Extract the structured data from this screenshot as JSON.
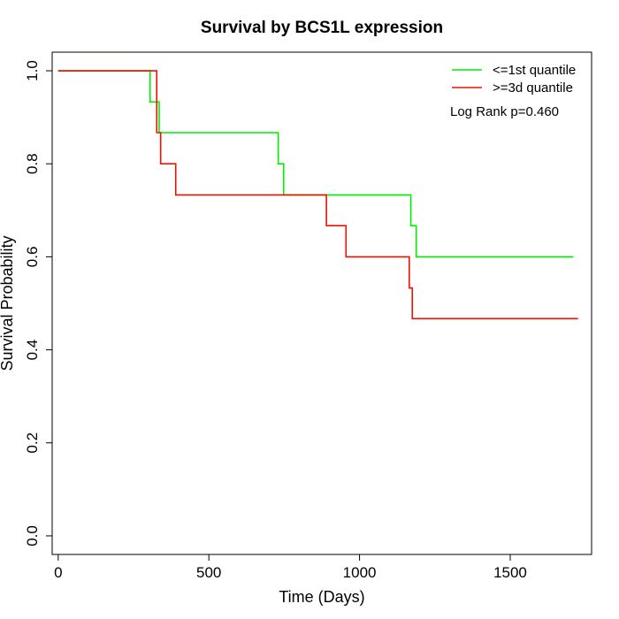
{
  "chart_data": {
    "type": "line",
    "title": "Survival by BCS1L expression",
    "xlabel": "Time (Days)",
    "ylabel": "Survival Probability",
    "xlim": [
      -20,
      1770
    ],
    "ylim": [
      -0.04,
      1.04
    ],
    "xticks": [
      0,
      500,
      1000,
      1500
    ],
    "xtick_labels": [
      "0",
      "500",
      "1000",
      "1500"
    ],
    "yticks": [
      0.0,
      0.2,
      0.4,
      0.6,
      0.8,
      1.0
    ],
    "ytick_labels": [
      "0.0",
      "0.2",
      "0.4",
      "0.6",
      "0.8",
      "1.0"
    ],
    "grid": false,
    "legend_position": "top-right",
    "annotation": "Log Rank p=0.460",
    "series": [
      {
        "name": "<=1st quantile",
        "color": "#00ee00",
        "step": true,
        "points": [
          [
            0,
            1.0
          ],
          [
            305,
            1.0
          ],
          [
            305,
            0.933
          ],
          [
            335,
            0.933
          ],
          [
            335,
            0.867
          ],
          [
            730,
            0.867
          ],
          [
            730,
            0.8
          ],
          [
            748,
            0.8
          ],
          [
            748,
            0.733
          ],
          [
            1170,
            0.733
          ],
          [
            1170,
            0.667
          ],
          [
            1188,
            0.667
          ],
          [
            1188,
            0.6
          ],
          [
            1710,
            0.6
          ]
        ]
      },
      {
        "name": ">=3d quantile",
        "color": "#ee1100",
        "step": true,
        "points": [
          [
            0,
            1.0
          ],
          [
            327,
            1.0
          ],
          [
            327,
            0.867
          ],
          [
            340,
            0.867
          ],
          [
            340,
            0.8
          ],
          [
            390,
            0.8
          ],
          [
            390,
            0.733
          ],
          [
            890,
            0.733
          ],
          [
            890,
            0.667
          ],
          [
            955,
            0.667
          ],
          [
            955,
            0.6
          ],
          [
            1165,
            0.6
          ],
          [
            1165,
            0.533
          ],
          [
            1175,
            0.533
          ],
          [
            1175,
            0.467
          ],
          [
            1725,
            0.467
          ]
        ]
      }
    ]
  }
}
